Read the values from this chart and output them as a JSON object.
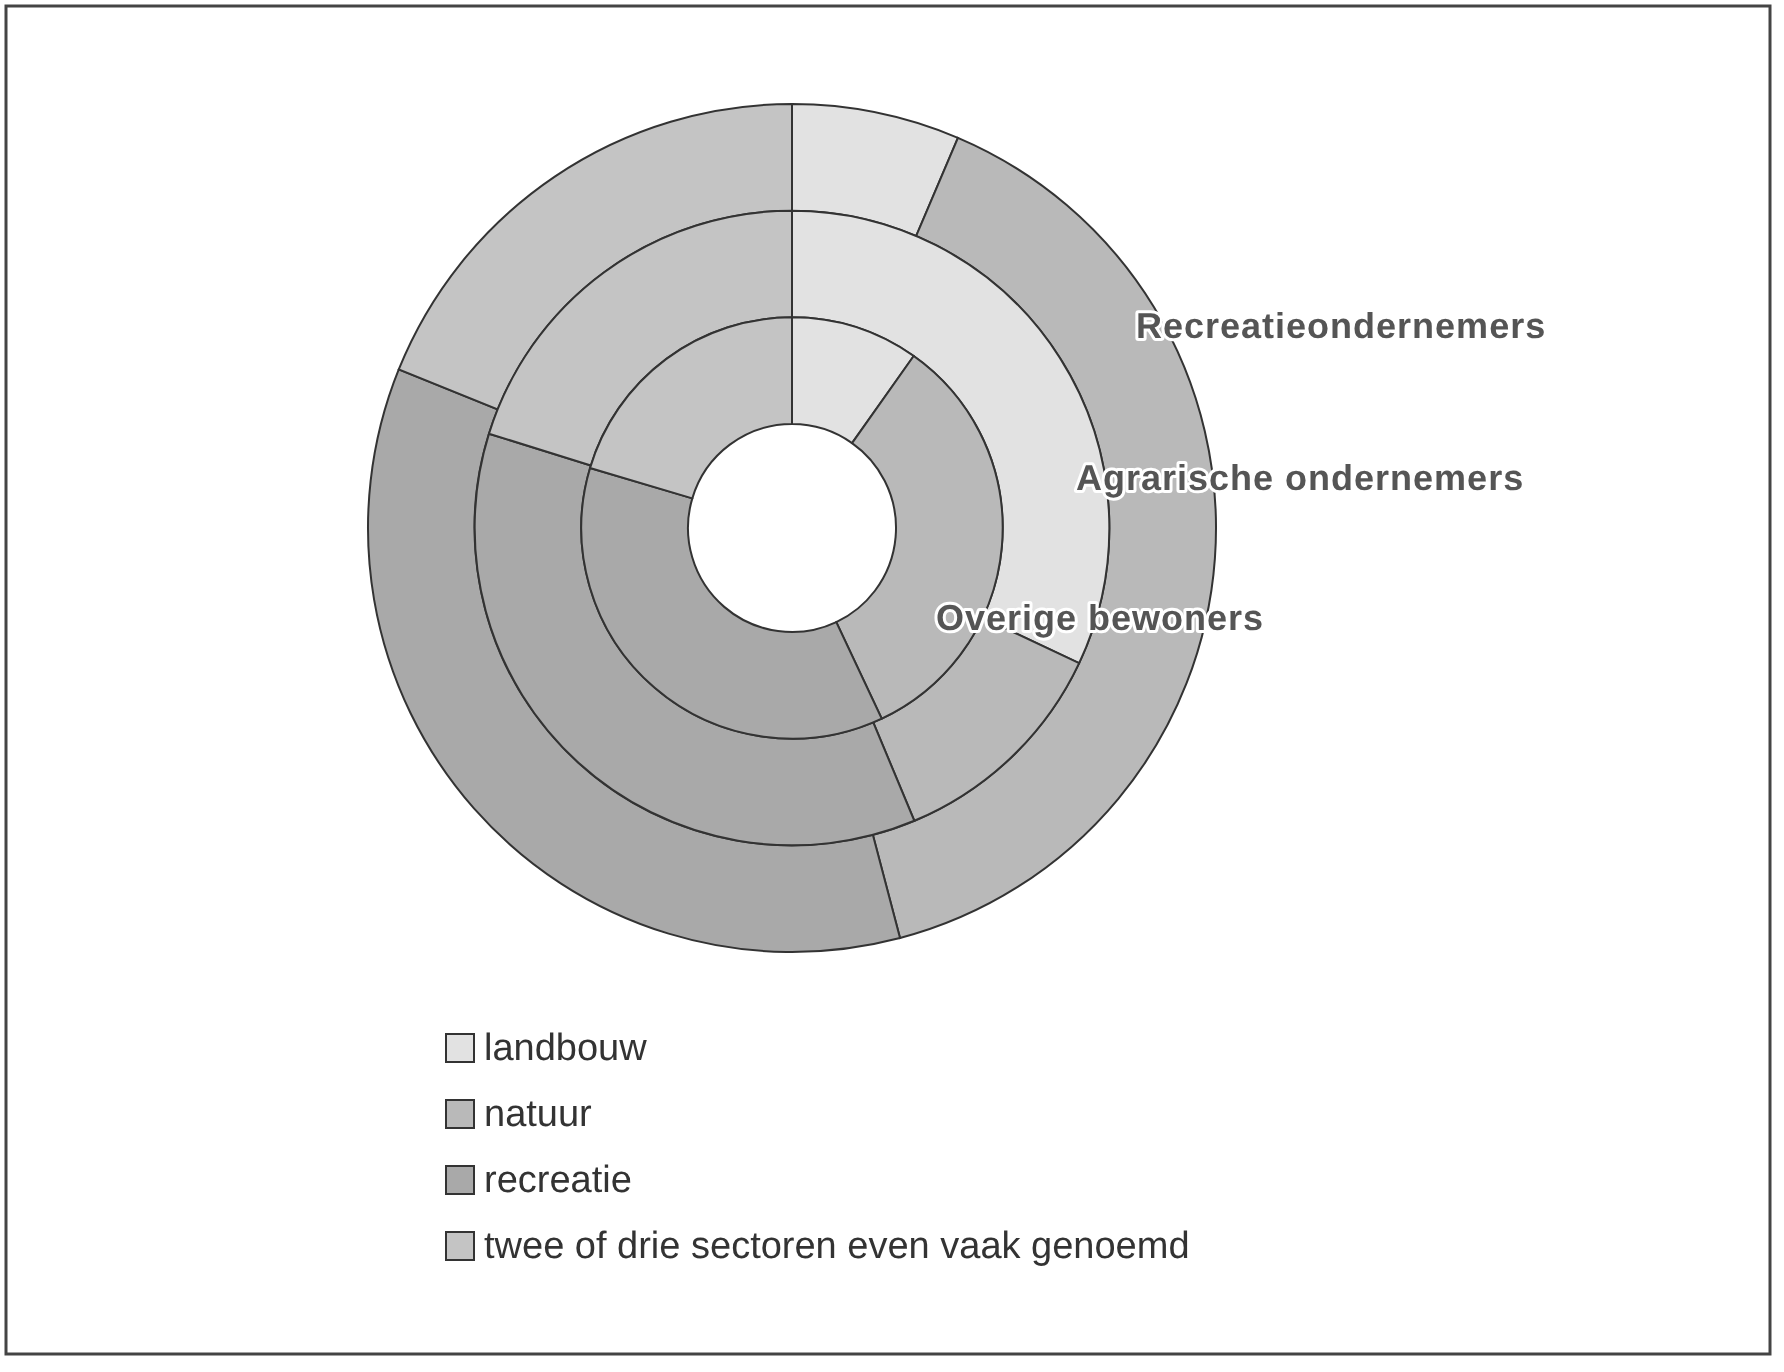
{
  "chart_data": {
    "type": "donut",
    "categories": [
      "landbouw",
      "natuur",
      "recreatie",
      "twee of drie sectoren even vaak genoemd"
    ],
    "colors": [
      "#e2e2e2",
      "#b9b9b9",
      "#a9a9a9",
      "#c4c4c4"
    ],
    "series": [
      {
        "name": "Recreatieondernemers",
        "values": [
          6.4,
          39.5,
          35.2,
          18.9
        ]
      },
      {
        "name": "Agrarische ondernemers",
        "values": [
          32.0,
          11.7,
          36.1,
          20.2
        ]
      },
      {
        "name": "Overige bewoners",
        "values": [
          9.8,
          33.2,
          36.6,
          20.4
        ]
      }
    ],
    "legend": "bottom"
  }
}
